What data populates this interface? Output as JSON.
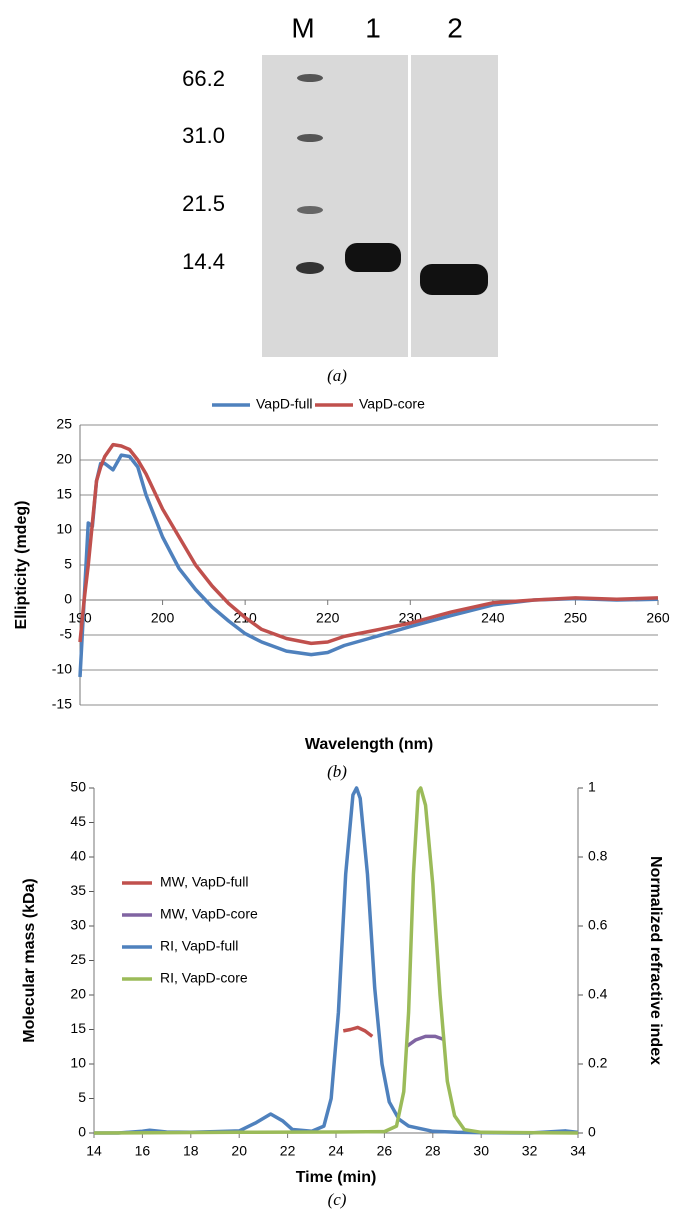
{
  "gel": {
    "lanes": [
      "M",
      "1",
      "2"
    ],
    "markers": [
      "66.2",
      "31.0",
      "21.5",
      "14.4"
    ],
    "caption": "(a)"
  },
  "chart_data": [
    {
      "type": "line",
      "x_label": "Wavelength (nm)",
      "y_label": "Ellipticity (mdeg)",
      "caption": "(b)",
      "x": [
        190,
        190.5,
        191,
        191.5,
        192,
        192.5,
        193,
        194,
        195,
        196,
        197,
        198,
        200,
        202,
        204,
        206,
        208,
        210,
        212,
        215,
        218,
        220,
        222,
        225,
        230,
        235,
        240,
        245,
        250,
        255,
        260
      ],
      "series": [
        {
          "name": "VapD-full",
          "color": "#4f81bd",
          "values": [
            -11,
            0,
            11,
            10.5,
            17,
            19.5,
            19.5,
            18.6,
            20.7,
            20.5,
            19,
            15,
            9,
            4.5,
            1.5,
            -1,
            -3,
            -4.8,
            -6,
            -7.3,
            -7.8,
            -7.5,
            -6.5,
            -5.5,
            -3.8,
            -2.2,
            -0.7,
            0,
            0.2,
            0,
            0.1
          ]
        },
        {
          "name": "VapD-core",
          "color": "#c0504d",
          "values": [
            -6,
            0,
            5,
            11,
            17,
            19,
            20.5,
            22.2,
            22,
            21.5,
            20,
            18,
            13,
            9,
            5,
            2,
            -0.5,
            -2.5,
            -4.2,
            -5.5,
            -6.2,
            -6,
            -5.2,
            -4.5,
            -3.3,
            -1.7,
            -0.4,
            0,
            0.3,
            0.1,
            0.3
          ]
        }
      ],
      "xlim": [
        190,
        260
      ],
      "xticks": [
        190,
        200,
        210,
        220,
        230,
        240,
        250,
        260
      ],
      "ylim": [
        -15,
        25
      ],
      "yticks": [
        -15,
        -10,
        -5,
        0,
        5,
        10,
        15,
        20,
        25
      ],
      "grid": true,
      "legend": "top"
    },
    {
      "type": "line",
      "x_label": "Time (min)",
      "y_label": "Molecular mass (kDa)",
      "y2_label": "Normalized refractive index",
      "caption": "(c)",
      "series": [
        {
          "name": "MW, VapD-full",
          "color": "#c0504d",
          "x": [
            24.3,
            24.6,
            24.9,
            25.2,
            25.5
          ],
          "values": [
            14.8,
            15,
            15.3,
            14.8,
            14
          ]
        },
        {
          "name": "MW, VapD-core",
          "color": "#8064a2",
          "x": [
            26.9,
            27.3,
            27.7,
            28.1,
            28.5
          ],
          "values": [
            12.5,
            13.5,
            14,
            14,
            13.5
          ]
        },
        {
          "name": "RI, VapD-full",
          "color": "#4f81bd",
          "axis": "y2",
          "x": [
            14,
            15,
            16,
            16.3,
            17,
            18,
            19,
            20,
            20.7,
            21.3,
            21.8,
            22.2,
            23,
            23.5,
            23.8,
            24.1,
            24.4,
            24.7,
            24.85,
            25,
            25.3,
            25.6,
            25.9,
            26.2,
            26.6,
            27,
            28,
            29,
            30,
            32,
            33.5,
            34
          ],
          "values": [
            0,
            0,
            0.005,
            0.008,
            0.003,
            0.002,
            0.004,
            0.006,
            0.03,
            0.055,
            0.035,
            0.01,
            0.005,
            0.02,
            0.1,
            0.35,
            0.75,
            0.98,
            1,
            0.97,
            0.75,
            0.42,
            0.2,
            0.09,
            0.04,
            0.02,
            0.005,
            0.002,
            0.001,
            0,
            0.006,
            0.002
          ]
        },
        {
          "name": "RI, VapD-core",
          "color": "#9bbb59",
          "axis": "y2",
          "x": [
            14,
            20,
            24,
            26,
            26.5,
            26.8,
            27,
            27.2,
            27.4,
            27.5,
            27.7,
            28,
            28.3,
            28.6,
            28.9,
            29.3,
            30,
            34
          ],
          "values": [
            0,
            0.002,
            0.003,
            0.004,
            0.02,
            0.12,
            0.35,
            0.75,
            0.99,
            1,
            0.95,
            0.72,
            0.4,
            0.15,
            0.05,
            0.01,
            0.002,
            0
          ]
        }
      ],
      "xlim": [
        14,
        34
      ],
      "xticks": [
        14,
        16,
        18,
        20,
        22,
        24,
        26,
        28,
        30,
        32,
        34
      ],
      "ylim": [
        0,
        50
      ],
      "yticks": [
        0,
        5,
        10,
        15,
        20,
        25,
        30,
        35,
        40,
        45,
        50
      ],
      "y2lim": [
        0,
        1
      ],
      "y2ticks": [
        0,
        0.2,
        0.4,
        0.6,
        0.8,
        1
      ],
      "grid": false,
      "legend": "left"
    }
  ]
}
